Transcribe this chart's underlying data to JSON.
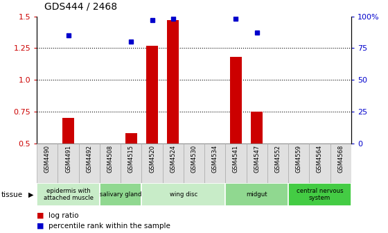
{
  "title": "GDS444 / 2468",
  "samples": [
    "GSM4490",
    "GSM4491",
    "GSM4492",
    "GSM4508",
    "GSM4515",
    "GSM4520",
    "GSM4524",
    "GSM4530",
    "GSM4534",
    "GSM4541",
    "GSM4547",
    "GSM4552",
    "GSM4559",
    "GSM4564",
    "GSM4568"
  ],
  "log_ratio": [
    0.5,
    0.7,
    0.5,
    0.5,
    0.58,
    1.27,
    1.47,
    0.5,
    0.5,
    1.18,
    0.75,
    0.5,
    0.5,
    0.5,
    0.5
  ],
  "percentile": [
    null,
    85,
    null,
    null,
    80,
    97,
    98,
    null,
    null,
    98,
    87,
    null,
    null,
    null,
    null
  ],
  "tissue_groups": [
    {
      "label": "epidermis with\nattached muscle",
      "start": 0,
      "end": 2,
      "color": "#c8ecc8"
    },
    {
      "label": "salivary gland",
      "start": 3,
      "end": 4,
      "color": "#90d890"
    },
    {
      "label": "wing disc",
      "start": 5,
      "end": 8,
      "color": "#c8ecc8"
    },
    {
      "label": "midgut",
      "start": 9,
      "end": 11,
      "color": "#90d890"
    },
    {
      "label": "central nervous\nsystem",
      "start": 12,
      "end": 14,
      "color": "#44cc44"
    }
  ],
  "bar_color": "#cc0000",
  "dot_color": "#0000cc",
  "ylim_left": [
    0.5,
    1.5
  ],
  "ylim_right": [
    0,
    100
  ],
  "yticks_left": [
    0.5,
    0.75,
    1.0,
    1.25,
    1.5
  ],
  "yticks_right": [
    0,
    25,
    50,
    75,
    100
  ],
  "dotted_lines": [
    0.75,
    1.0,
    1.25
  ],
  "baseline": 0.5,
  "sample_cell_color": "#e0e0e0",
  "sample_cell_edge": "#aaaaaa"
}
